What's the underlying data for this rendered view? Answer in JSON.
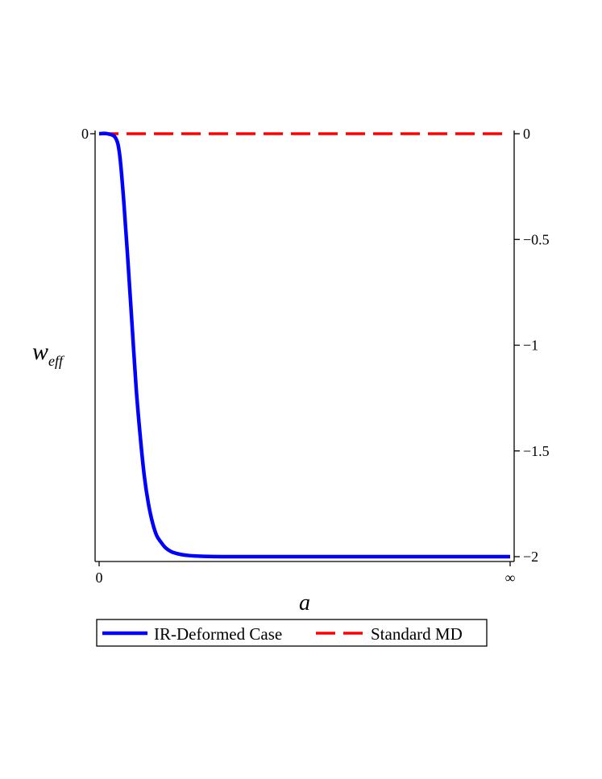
{
  "chart_data": {
    "type": "line",
    "xlabel": "a",
    "ylabel": {
      "main": "w",
      "sub": "eff"
    },
    "xlim": [
      0,
      1
    ],
    "ylim": [
      -2,
      0
    ],
    "x_ticks": [
      {
        "value": 0,
        "label": "0"
      },
      {
        "value": 1,
        "label": "∞"
      }
    ],
    "y_ticks_left": [
      {
        "value": 0,
        "label": "0"
      }
    ],
    "y_ticks_right": [
      {
        "value": 0,
        "label": "0"
      },
      {
        "value": -0.5,
        "label": "−0.5"
      },
      {
        "value": -1,
        "label": "−1"
      },
      {
        "value": -1.5,
        "label": "−1.5"
      },
      {
        "value": -2,
        "label": "−2"
      }
    ],
    "grid": false,
    "legend": {
      "placement": "bottom"
    },
    "series": [
      {
        "name": "IR-Deformed Case",
        "color": "#0000ff",
        "style": "solid",
        "x": [
          0,
          0.02,
          0.04,
          0.05,
          0.06,
          0.07,
          0.08,
          0.09,
          0.1,
          0.11,
          0.12,
          0.13,
          0.14,
          0.15,
          0.16,
          0.17,
          0.18,
          0.2,
          0.22,
          0.25,
          0.3,
          0.35,
          0.4,
          0.5,
          0.6,
          0.7,
          0.8,
          0.9,
          1
        ],
        "y": [
          0,
          0,
          -0.02,
          -0.1,
          -0.32,
          -0.6,
          -0.9,
          -1.2,
          -1.43,
          -1.62,
          -1.75,
          -1.84,
          -1.9,
          -1.93,
          -1.955,
          -1.97,
          -1.98,
          -1.99,
          -1.995,
          -1.998,
          -2,
          -2,
          -2,
          -2,
          -2,
          -2,
          -2,
          -2,
          -2
        ]
      },
      {
        "name": "Standard MD",
        "color": "#ff0000",
        "style": "dashed",
        "x": [
          0,
          1
        ],
        "y": [
          0,
          0
        ]
      }
    ]
  }
}
